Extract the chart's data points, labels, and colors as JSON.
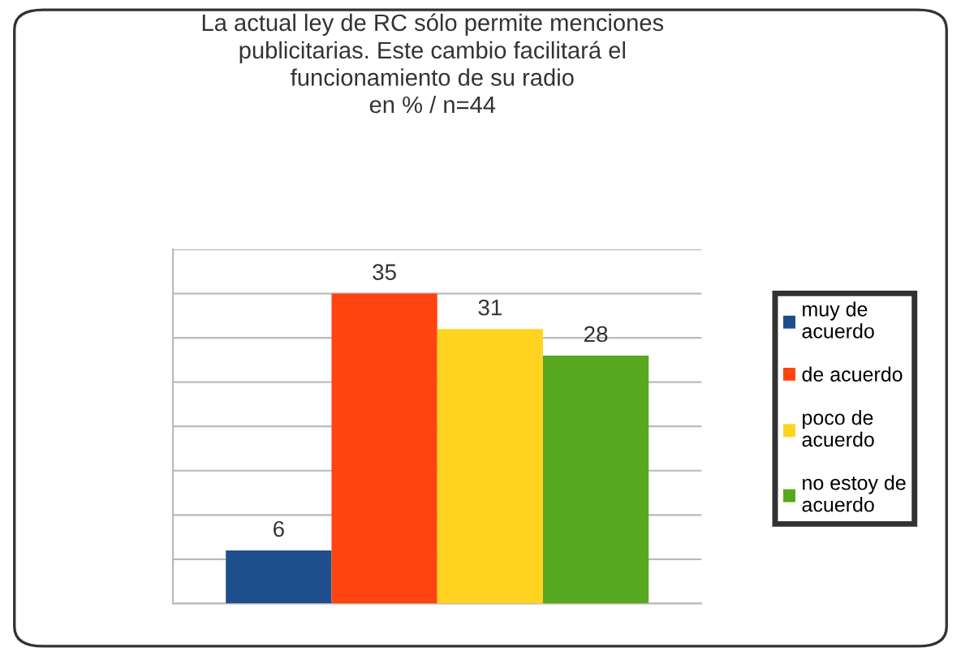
{
  "chart_data": {
    "type": "bar",
    "title": "La actual ley de RC sólo permite menciones\npublicitarias. Este cambio facilitará el\nfuncionamiento de su radio\nen % / n=44",
    "categories": [
      null
    ],
    "series": [
      {
        "name": "muy de\nacuerdo",
        "color": "#1f4e8c",
        "values": [
          6
        ]
      },
      {
        "name": "de acuerdo",
        "color": "#ff4411",
        "values": [
          35
        ]
      },
      {
        "name": "poco de\nacuerdo",
        "color": "#ffd320",
        "values": [
          31
        ]
      },
      {
        "name": "no estoy de\nacuerdo",
        "color": "#57a81e",
        "values": [
          28
        ]
      }
    ],
    "data_labels": true,
    "ylim": [
      0,
      40
    ],
    "yticks": [
      {
        "value": 0,
        "label": null
      },
      {
        "value": 5,
        "label": null
      },
      {
        "value": 10,
        "label": null
      },
      {
        "value": 15,
        "label": null
      },
      {
        "value": 20,
        "label": null
      },
      {
        "value": 25,
        "label": null
      },
      {
        "value": 30,
        "label": null
      },
      {
        "value": 35,
        "label": null
      },
      {
        "value": 40,
        "label": null
      }
    ],
    "grid": "y",
    "legend": "right"
  }
}
